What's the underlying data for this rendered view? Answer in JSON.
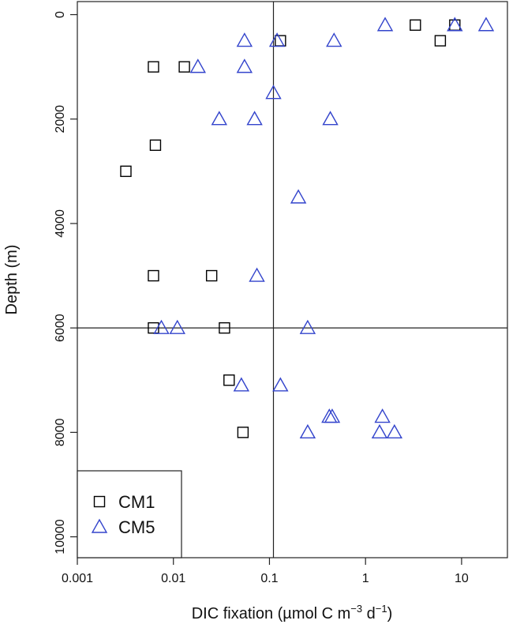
{
  "chart_data": {
    "type": "scatter",
    "title": "",
    "xlabel_prefix": "DIC fixation (µmol C m",
    "xlabel_sup1": "−3",
    "xlabel_mid": " d",
    "xlabel_sup2": "−1",
    "xlabel_suffix": ")",
    "ylabel": "Depth (m)",
    "x_scale": "log",
    "xlim": [
      0.001,
      30
    ],
    "ylim": [
      10400,
      -250
    ],
    "y_reversed": true,
    "grid": false,
    "x_ticks": [
      {
        "value": 0.001,
        "label": "0.001"
      },
      {
        "value": 0.01,
        "label": "0.01"
      },
      {
        "value": 0.1,
        "label": "0.1"
      },
      {
        "value": 1,
        "label": "1"
      },
      {
        "value": 10,
        "label": "10"
      }
    ],
    "y_ticks": [
      {
        "value": 0,
        "label": "0"
      },
      {
        "value": 2000,
        "label": "2000"
      },
      {
        "value": 4000,
        "label": "4000"
      },
      {
        "value": 6000,
        "label": "6000"
      },
      {
        "value": 8000,
        "label": "8000"
      },
      {
        "value": 10000,
        "label": "10000"
      }
    ],
    "reference_lines": {
      "vertical_x": 0.11,
      "horizontal_y": 6000
    },
    "legend_position": "bottom-left",
    "series": [
      {
        "name": "CM1",
        "marker": "square",
        "color": "#000000",
        "points": [
          {
            "x": 3.3,
            "y": 200
          },
          {
            "x": 8.5,
            "y": 200
          },
          {
            "x": 0.13,
            "y": 500
          },
          {
            "x": 6.0,
            "y": 500
          },
          {
            "x": 0.0062,
            "y": 1000
          },
          {
            "x": 0.013,
            "y": 1000
          },
          {
            "x": 0.0065,
            "y": 2500
          },
          {
            "x": 0.0032,
            "y": 3000
          },
          {
            "x": 0.0062,
            "y": 5000
          },
          {
            "x": 0.025,
            "y": 5000
          },
          {
            "x": 0.0062,
            "y": 6000
          },
          {
            "x": 0.034,
            "y": 6000
          },
          {
            "x": 0.038,
            "y": 7000
          },
          {
            "x": 0.053,
            "y": 8000
          }
        ]
      },
      {
        "name": "CM5",
        "marker": "triangle",
        "color": "#3344cc",
        "points": [
          {
            "x": 1.6,
            "y": 200
          },
          {
            "x": 8.5,
            "y": 200
          },
          {
            "x": 18,
            "y": 200
          },
          {
            "x": 0.055,
            "y": 500
          },
          {
            "x": 0.12,
            "y": 500
          },
          {
            "x": 0.47,
            "y": 500
          },
          {
            "x": 0.018,
            "y": 1000
          },
          {
            "x": 0.055,
            "y": 1000
          },
          {
            "x": 0.11,
            "y": 1500
          },
          {
            "x": 0.03,
            "y": 2000
          },
          {
            "x": 0.07,
            "y": 2000
          },
          {
            "x": 0.43,
            "y": 2000
          },
          {
            "x": 0.2,
            "y": 3500
          },
          {
            "x": 0.074,
            "y": 5000
          },
          {
            "x": 0.0075,
            "y": 6000
          },
          {
            "x": 0.011,
            "y": 6000
          },
          {
            "x": 0.25,
            "y": 6000
          },
          {
            "x": 0.051,
            "y": 7100
          },
          {
            "x": 0.13,
            "y": 7100
          },
          {
            "x": 0.42,
            "y": 7700
          },
          {
            "x": 0.45,
            "y": 7700
          },
          {
            "x": 1.5,
            "y": 7700
          },
          {
            "x": 0.25,
            "y": 8000
          },
          {
            "x": 1.4,
            "y": 8000
          },
          {
            "x": 2.0,
            "y": 8000
          }
        ]
      }
    ]
  }
}
